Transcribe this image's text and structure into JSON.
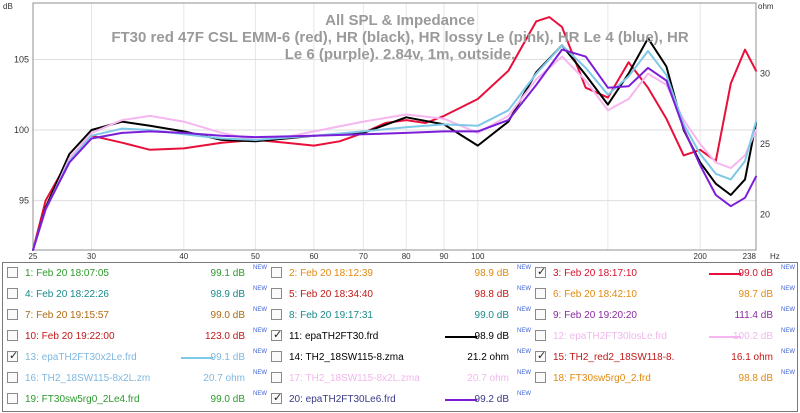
{
  "chart_data": {
    "type": "line",
    "title_lines": [
      "All SPL & Impedance",
      "FT30 red 47F CSL EMM-6 (red), HR (black), HR lossy Le (pink), HR Le 4 (blue), HR",
      "Le 6 (purple). 2.84v, 1m, outside."
    ],
    "left_unit": "dB",
    "right_unit": "ohm",
    "x_unit": "Hz",
    "x_scale": "log",
    "xlim": [
      25,
      238
    ],
    "ylim": [
      91.5,
      109
    ],
    "right_ylim": [
      17.5,
      35
    ],
    "x_ticks": [
      "25",
      "30",
      "40",
      "50",
      "60",
      "70",
      "80",
      "90",
      "100",
      "200",
      "238"
    ],
    "y_ticks": [
      "95",
      "100",
      "105"
    ],
    "right_ticks": [
      "20",
      "25",
      "30"
    ],
    "grid": true,
    "series": [
      {
        "name": "3: Feb 20 18:17:10",
        "color": "#e8103a",
        "x": [
          25,
          26,
          28,
          30,
          33,
          36,
          40,
          45,
          50,
          55,
          60,
          65,
          70,
          75,
          80,
          85,
          90,
          100,
          110,
          120,
          125,
          130,
          140,
          150,
          160,
          170,
          180,
          190,
          200,
          210,
          220,
          230,
          238
        ],
        "y": [
          91.5,
          95,
          98,
          99.6,
          99.1,
          98.6,
          98.7,
          99.1,
          99.3,
          99.1,
          98.9,
          99.2,
          99.8,
          100.5,
          100.7,
          100.5,
          101.0,
          102.2,
          104.2,
          107.7,
          108.0,
          107.3,
          103.0,
          102.3,
          104.8,
          103.0,
          100.8,
          98.2,
          98.6,
          97.8,
          103.3,
          105.7,
          104.2
        ]
      },
      {
        "name": "11: epaTH2FT30.frd",
        "color": "#000000",
        "x": [
          25,
          26,
          28,
          30,
          33,
          36,
          40,
          45,
          50,
          55,
          60,
          70,
          80,
          90,
          100,
          110,
          120,
          130,
          140,
          150,
          160,
          170,
          180,
          190,
          200,
          210,
          220,
          230,
          238
        ],
        "y": [
          91.5,
          94.5,
          98.3,
          100.0,
          100.6,
          100.3,
          99.9,
          99.3,
          99.2,
          99.4,
          99.6,
          99.8,
          100.9,
          100.4,
          98.9,
          100.6,
          104.1,
          106.0,
          103.9,
          101.8,
          104.0,
          106.5,
          104.5,
          100.0,
          97.7,
          96.2,
          95.4,
          96.5,
          100.5
        ]
      },
      {
        "name": "12: epaTH2FT30losLe.frd",
        "color": "#f6b6f0",
        "x": [
          25,
          26,
          28,
          30,
          33,
          36,
          40,
          45,
          50,
          55,
          60,
          70,
          80,
          90,
          100,
          110,
          120,
          130,
          140,
          150,
          160,
          170,
          180,
          190,
          200,
          210,
          220,
          230,
          238
        ],
        "y": [
          91.5,
          94.3,
          98.0,
          99.8,
          100.7,
          101.0,
          100.6,
          99.8,
          99.3,
          99.5,
          99.9,
          100.6,
          101.1,
          100.8,
          99.8,
          101.0,
          103.6,
          105.2,
          103.5,
          101.4,
          102.2,
          104.0,
          103.2,
          100.7,
          99.0,
          97.7,
          97.3,
          98.2,
          100.0
        ]
      },
      {
        "name": "13: epaTH2FT30x2Le.frd",
        "color": "#7fc8e8",
        "x": [
          25,
          26,
          28,
          30,
          33,
          36,
          40,
          45,
          50,
          60,
          70,
          80,
          90,
          100,
          110,
          120,
          130,
          140,
          150,
          160,
          170,
          180,
          190,
          200,
          210,
          220,
          230,
          238
        ],
        "y": [
          91.5,
          94.4,
          97.8,
          99.6,
          100.1,
          100.0,
          99.7,
          99.4,
          99.3,
          99.6,
          99.9,
          100.2,
          100.4,
          100.3,
          101.4,
          104.0,
          106.0,
          104.4,
          102.5,
          103.8,
          105.6,
          103.9,
          100.4,
          98.3,
          96.9,
          96.5,
          97.8,
          100.6
        ]
      },
      {
        "name": "20: epaTH2FT30Le6.frd",
        "color": "#7c1ed8",
        "x": [
          25,
          26,
          28,
          30,
          33,
          36,
          40,
          45,
          50,
          60,
          70,
          80,
          90,
          100,
          110,
          120,
          130,
          140,
          150,
          160,
          170,
          180,
          190,
          200,
          210,
          220,
          230,
          238
        ],
        "y": [
          91.5,
          94.4,
          97.7,
          99.4,
          99.8,
          99.9,
          99.8,
          99.6,
          99.5,
          99.6,
          99.7,
          99.8,
          99.9,
          99.9,
          100.7,
          103.2,
          105.7,
          105.2,
          103.0,
          103.1,
          104.4,
          103.5,
          100.1,
          97.5,
          95.4,
          94.6,
          95.2,
          96.7
        ]
      }
    ]
  },
  "legend": {
    "rows": [
      [
        {
          "checked": false,
          "label": "1: Feb 20 18:07:05",
          "value": "99.1 dB",
          "new": "NEW",
          "color": "#2b9a2b"
        },
        {
          "checked": false,
          "label": "2: Feb 20 18:12:39",
          "value": "98.9 dB",
          "new": "NEW",
          "color": "#e08a10"
        },
        {
          "checked": true,
          "label": "3: Feb 20 18:17:10",
          "value": "99.0 dB",
          "new": "NEW",
          "color": "#d8102c",
          "swatch": "#e8103a"
        }
      ],
      [
        {
          "checked": false,
          "label": "4: Feb 20 18:22:26",
          "value": "98.9 dB",
          "new": "NEW",
          "color": "#1a8a8a"
        },
        {
          "checked": false,
          "label": "5: Feb 20 18:34:40",
          "value": "98.8 dB",
          "new": "NEW",
          "color": "#c01818"
        },
        {
          "checked": false,
          "label": "6: Feb 20 18:42:10",
          "value": "98.7 dB",
          "new": "NEW",
          "color": "#e08a10"
        }
      ],
      [
        {
          "checked": false,
          "label": "7: Feb 20 19:15:57",
          "value": "99.0 dB",
          "new": "NEW",
          "color": "#b06a10"
        },
        {
          "checked": false,
          "label": "8: Feb 20 19:17:31",
          "value": "99.0 dB",
          "new": "NEW",
          "color": "#1a8a8a"
        },
        {
          "checked": false,
          "label": "9: Feb 20 19:20:20",
          "value": "111.4 dB",
          "new": "NEW",
          "color": "#8a2aa0"
        }
      ],
      [
        {
          "checked": false,
          "label": "10: Feb 20 19:22:00",
          "value": "123.0 dB",
          "new": "NEW",
          "color": "#c01818"
        },
        {
          "checked": true,
          "label": "11: epaTH2FT30.frd",
          "value": "98.9 dB",
          "new": "NEW",
          "color": "#000000",
          "swatch": "#000000"
        },
        {
          "checked": false,
          "label": "12: epaTH2FT30losLe.frd",
          "value": "100.2 dB",
          "new": "NEW",
          "color": "#f0b8ec",
          "swatch": "#f6b6f0"
        }
      ],
      [
        {
          "checked": true,
          "label": "13: epaTH2FT30x2Le.frd",
          "value": "99.1 dB",
          "new": "NEW",
          "color": "#7fb8e0",
          "swatch": "#7fc8e8"
        },
        {
          "checked": false,
          "label": "14: TH2_18SW115-8.zma",
          "value": "21.2 ohm",
          "new": "NEW",
          "color": "#000000"
        },
        {
          "checked": true,
          "label": "15: TH2_red2_18SW118-8.",
          "value": "16.1 ohm",
          "new": "NEW",
          "color": "#c01818"
        }
      ],
      [
        {
          "checked": false,
          "label": "16: TH2_18SW115-8x2L.zm",
          "value": "20.7 ohm",
          "new": "NEW",
          "color": "#7fb8e0"
        },
        {
          "checked": false,
          "label": "17: TH2_18SW115-8x2L.zma",
          "value": "20.7 ohm",
          "new": "NEW",
          "color": "#f0b8ec"
        },
        {
          "checked": false,
          "label": "18: FT30sw5rg0_2.frd",
          "value": "98.8 dB",
          "new": "NEW",
          "color": "#e08a10"
        }
      ],
      [
        {
          "checked": false,
          "label": "19: FT30sw5rg0_2Le4.frd",
          "value": "99.0 dB",
          "new": "NEW",
          "color": "#2b9a2b"
        },
        {
          "checked": true,
          "label": "20: epaTH2FT30Le6.frd",
          "value": "99.2 dB",
          "new": "NEW",
          "color": "#3a3a8a",
          "swatch": "#7c1ed8"
        },
        {
          "checked": false,
          "label": "",
          "value": "",
          "new": "",
          "color": "#000000"
        }
      ]
    ]
  }
}
